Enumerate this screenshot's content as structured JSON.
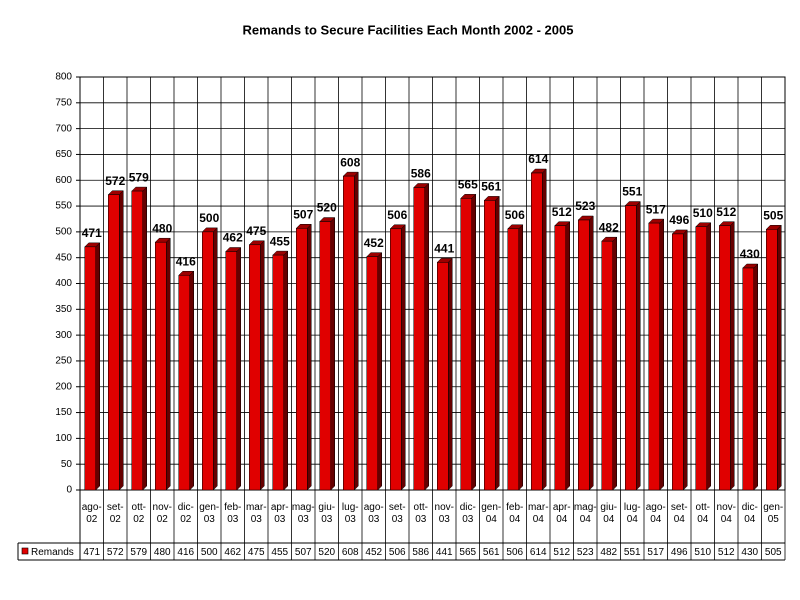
{
  "chart_data": {
    "type": "bar",
    "title": "Remands to Secure Facilities Each Month 2002 - 2005",
    "categories": [
      "ago-02",
      "set-02",
      "ott-02",
      "nov-02",
      "dic-02",
      "gen-03",
      "feb-03",
      "mar-03",
      "apr-03",
      "mag-03",
      "giu-03",
      "lug-03",
      "ago-03",
      "set-03",
      "ott-03",
      "nov-03",
      "dic-03",
      "gen-04",
      "feb-04",
      "mar-04",
      "apr-04",
      "mag-04",
      "giu-04",
      "lug-04",
      "ago-04",
      "set-04",
      "ott-04",
      "nov-04",
      "dic-04",
      "gen-05"
    ],
    "series": [
      {
        "name": "Remands",
        "color": "#e00000",
        "values": [
          471,
          572,
          579,
          480,
          416,
          500,
          462,
          475,
          455,
          507,
          520,
          608,
          452,
          506,
          586,
          441,
          565,
          561,
          506,
          614,
          512,
          523,
          482,
          551,
          517,
          496,
          510,
          512,
          430,
          505
        ]
      }
    ],
    "ylim": [
      0,
      800
    ],
    "yticks": [
      0,
      50,
      100,
      150,
      200,
      250,
      300,
      350,
      400,
      450,
      500,
      550,
      600,
      650,
      700,
      750,
      800
    ],
    "grid": true,
    "data_table": true
  }
}
